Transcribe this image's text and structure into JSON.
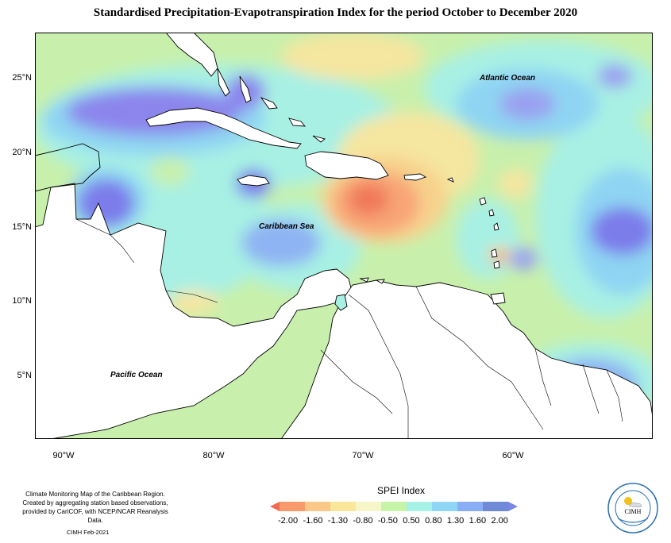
{
  "title": "Standardised Precipitation-Evapotranspiration Index for the period October to December 2020",
  "latitude_labels": [
    "25°N",
    "20°N",
    "15°N",
    "10°N",
    "5°N"
  ],
  "longitude_labels": [
    "90°W",
    "80°W",
    "70°W",
    "60°W"
  ],
  "ocean_labels": {
    "atlantic": "Atlantic Ocean",
    "caribbean": "Caribbean Sea",
    "pacific": "Pacific Ocean"
  },
  "credit": {
    "line1": "Climate Monitoring Map of the Caribbean Region.",
    "line2": "Created by aggregating station based observations,",
    "line3": "provided by CariCOF, with NCEP/NCAR Reanalysis Data.",
    "footer": "CIMH Feb-2021"
  },
  "legend": {
    "title": "SPEI Index",
    "ticks": [
      "-2.00",
      "-1.60",
      "-1.30",
      "-0.80",
      "-0.50",
      "0.50",
      "0.80",
      "1.30",
      "1.60",
      "2.00"
    ],
    "colors": [
      "#f06a52",
      "#f89a6c",
      "#fbc88a",
      "#fbe79a",
      "#f6f6c8",
      "#c6f4a8",
      "#a6f2e6",
      "#8fd6f5",
      "#8aaef5",
      "#6f8bd8",
      "#7a86e8"
    ]
  },
  "logo": {
    "name": "CIMH"
  }
}
